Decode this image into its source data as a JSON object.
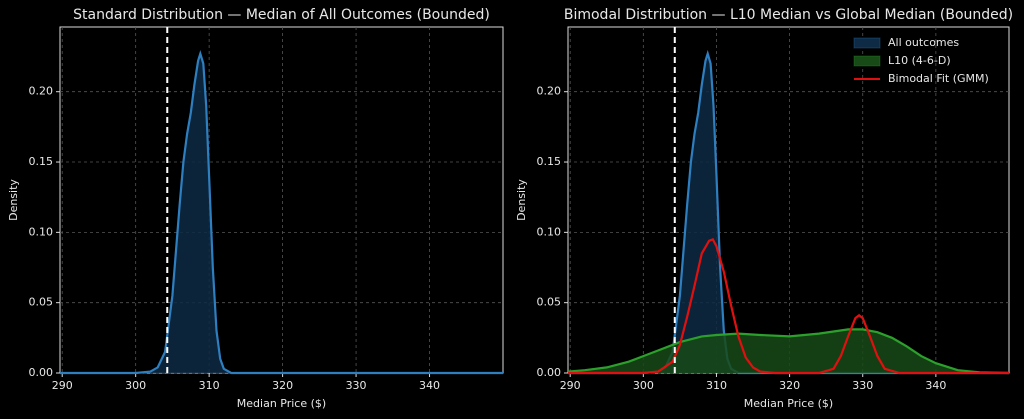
{
  "chart_data": [
    {
      "type": "line",
      "title": "Standard Distribution — Median of All Outcomes (Bounded)",
      "xlabel": "Median Price ($)",
      "ylabel": "Density",
      "xlim": [
        289.7,
        350
      ],
      "ylim": [
        0,
        0.246
      ],
      "xticks": [
        290,
        300,
        310,
        320,
        330,
        340
      ],
      "yticks": [
        {
          "value": 0,
          "label": "0.00"
        },
        {
          "value": 0.05,
          "label": "0.05"
        },
        {
          "value": 0.1,
          "label": "0.10"
        },
        {
          "value": 0.15,
          "label": "0.15"
        },
        {
          "value": 0.2,
          "label": "0.20"
        }
      ],
      "grid": true,
      "vline": 304.3,
      "vline_color": "#ffffff",
      "series": [
        {
          "color": "#2e7fc0",
          "fill": "#0e2a44",
          "x": [
            289.7,
            300,
            302,
            303,
            304,
            305,
            306,
            306.5,
            307,
            307.5,
            308,
            308.5,
            308.8,
            309.2,
            309.6,
            310,
            310.5,
            311,
            311.5,
            312,
            313,
            350
          ],
          "values": [
            0,
            0,
            0.001,
            0.004,
            0.015,
            0.055,
            0.12,
            0.15,
            0.17,
            0.185,
            0.205,
            0.222,
            0.227,
            0.22,
            0.19,
            0.14,
            0.075,
            0.03,
            0.01,
            0.003,
            0,
            0
          ]
        }
      ]
    },
    {
      "type": "line",
      "title": "Bimodal Distribution — L10 Median vs Global Median (Bounded)",
      "xlabel": "Median Price ($)",
      "ylabel": "Density",
      "xlim": [
        289.7,
        350
      ],
      "ylim": [
        0,
        0.246
      ],
      "xticks": [
        290,
        300,
        310,
        320,
        330,
        340
      ],
      "yticks": [
        {
          "value": 0,
          "label": "0.00"
        },
        {
          "value": 0.05,
          "label": "0.05"
        },
        {
          "value": 0.1,
          "label": "0.10"
        },
        {
          "value": 0.15,
          "label": "0.15"
        },
        {
          "value": 0.2,
          "label": "0.20"
        }
      ],
      "grid": true,
      "vline": 304.3,
      "vline_color": "#ffffff",
      "legend": "upper right",
      "series": [
        {
          "name": "All outcomes",
          "color": "#2e7fc0",
          "fill": "#0e2a44",
          "x": [
            289.7,
            300,
            302,
            303,
            304,
            305,
            306,
            306.5,
            307,
            307.5,
            308,
            308.5,
            308.8,
            309.2,
            309.6,
            310,
            310.5,
            311,
            311.5,
            312,
            313,
            350
          ],
          "values": [
            0,
            0,
            0.001,
            0.004,
            0.015,
            0.055,
            0.12,
            0.15,
            0.17,
            0.185,
            0.205,
            0.222,
            0.227,
            0.22,
            0.19,
            0.14,
            0.075,
            0.03,
            0.01,
            0.003,
            0,
            0
          ]
        },
        {
          "name": "L10 (4-6-D)",
          "color": "#2ca02c",
          "fill": "#174a17",
          "x": [
            289.7,
            292,
            295,
            298,
            300,
            302,
            305,
            308,
            310,
            313,
            316,
            320,
            324,
            328,
            330,
            332,
            334,
            336,
            338,
            340,
            343,
            346,
            350
          ],
          "values": [
            0.001,
            0.002,
            0.004,
            0.008,
            0.012,
            0.016,
            0.022,
            0.026,
            0.027,
            0.028,
            0.027,
            0.026,
            0.028,
            0.031,
            0.031,
            0.029,
            0.025,
            0.019,
            0.012,
            0.007,
            0.002,
            0.0005,
            0
          ]
        },
        {
          "name": "Bimodal Fit (GMM)",
          "color": "#e01010",
          "x": [
            289.7,
            300,
            302,
            304,
            305,
            306,
            307,
            308,
            309,
            309.5,
            310,
            311,
            312,
            313,
            314,
            315,
            316,
            318,
            324,
            326,
            327,
            328,
            329,
            329.5,
            330,
            331,
            332,
            333,
            335,
            350
          ],
          "values": [
            0,
            0,
            0.001,
            0.008,
            0.02,
            0.04,
            0.062,
            0.085,
            0.094,
            0.095,
            0.09,
            0.072,
            0.048,
            0.026,
            0.011,
            0.004,
            0.001,
            0,
            0,
            0.003,
            0.012,
            0.026,
            0.039,
            0.041,
            0.039,
            0.026,
            0.012,
            0.003,
            0,
            0
          ]
        }
      ]
    }
  ]
}
